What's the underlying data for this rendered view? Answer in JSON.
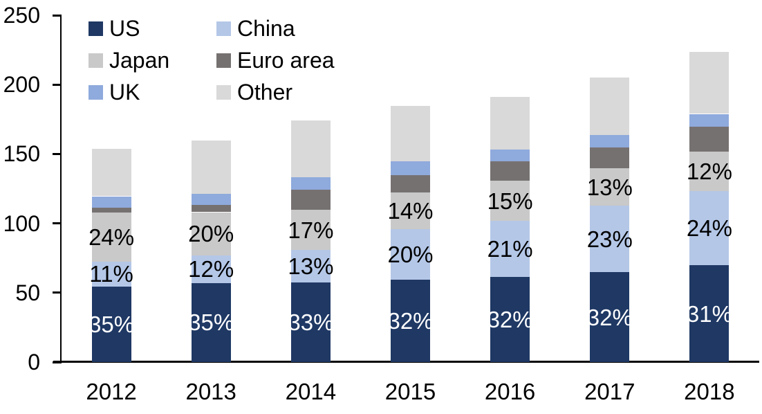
{
  "chart_data": {
    "type": "bar",
    "stacked": true,
    "grid": false,
    "categories": [
      "2012",
      "2013",
      "2014",
      "2015",
      "2016",
      "2017",
      "2018"
    ],
    "series": [
      {
        "name": "US",
        "color": "#1F3864",
        "values": [
          54.5,
          57.0,
          57.3,
          59.2,
          61.5,
          64.7,
          69.8
        ],
        "labels": [
          "35%",
          "35%",
          "33%",
          "32%",
          "32%",
          "32%",
          "31%"
        ],
        "label_color": "#FFFFFF"
      },
      {
        "name": "China",
        "color": "#B4C7E7",
        "values": [
          17.8,
          20.0,
          23.5,
          36.6,
          40.3,
          47.9,
          53.6
        ],
        "labels": [
          "11%",
          "12%",
          "13%",
          "20%",
          "21%",
          "23%",
          "24%"
        ],
        "label_color": "#000000"
      },
      {
        "name": "Japan",
        "color": "#C9C9C9",
        "values": [
          35.5,
          31.0,
          28.8,
          26.6,
          28.9,
          27.0,
          28.3
        ],
        "labels": [
          "24%",
          "20%",
          "17%",
          "14%",
          "15%",
          "13%",
          "12%"
        ],
        "label_color": "#000000"
      },
      {
        "name": "Euro area",
        "color": "#767171",
        "values": [
          3.5,
          5.2,
          14.6,
          12.5,
          13.9,
          15.2,
          17.8
        ]
      },
      {
        "name": "UK",
        "color": "#8FAADC",
        "values": [
          8.2,
          8.1,
          8.9,
          9.7,
          8.7,
          8.9,
          9.4
        ]
      },
      {
        "name": "Other",
        "color": "#D9D9D9",
        "values": [
          34.0,
          38.5,
          40.9,
          39.9,
          37.8,
          41.2,
          44.8
        ]
      }
    ],
    "y_axis": {
      "min": 0,
      "max": 250,
      "step": 50,
      "ticks": [
        "0",
        "50",
        "100",
        "150",
        "200",
        "250"
      ]
    },
    "legend": {
      "position": "top-left",
      "columns": [
        [
          "US",
          "Japan",
          "UK"
        ],
        [
          "China",
          "Euro area",
          "Other"
        ]
      ]
    }
  }
}
